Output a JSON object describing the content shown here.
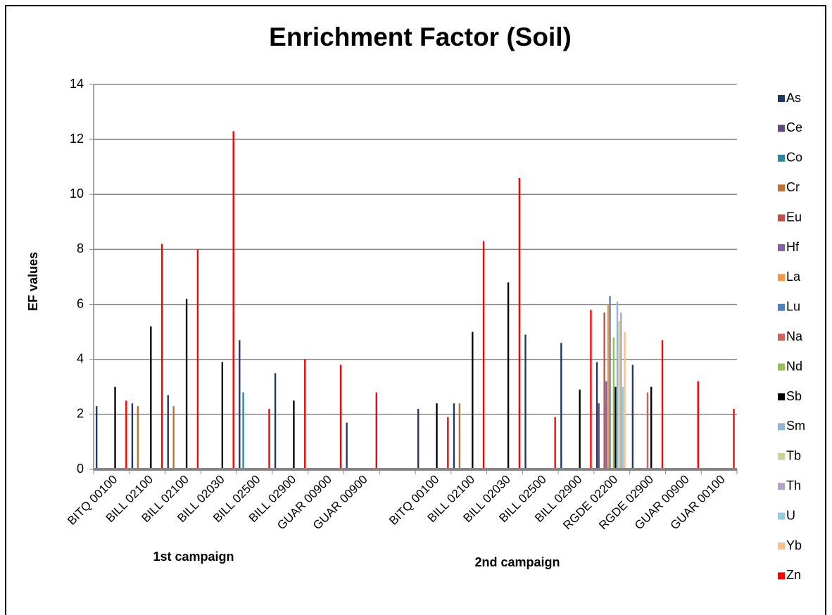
{
  "chart_data": {
    "type": "bar",
    "title": "Enrichment Factor (Soil)",
    "y_label": "EF values",
    "group_labels": [
      "1st campaign",
      "2nd campaign"
    ],
    "categories": [
      "BITQ 00100",
      "BILL 02100",
      "BILL 02100",
      "BILL 02030",
      "BILL 02500",
      "BILL 02900",
      "GUAR 00900",
      "GUAR 00900",
      null,
      "BITQ 00100",
      "BILL 02100",
      "BILL 02030",
      "BILL 02500",
      "BILL 02900",
      "RGDE 02200",
      "RGDE 02900",
      "GUAR 00900",
      "GUAR 00100"
    ],
    "ylim": [
      0,
      14
    ],
    "yticks": [
      0,
      2,
      4,
      6,
      8,
      10,
      12,
      14
    ],
    "grid": true,
    "legend": "right",
    "series": [
      {
        "name": "As",
        "color": "#1f3864",
        "values": [
          2.3,
          2.4,
          2.7,
          null,
          4.7,
          3.5,
          null,
          1.7,
          null,
          2.2,
          2.4,
          null,
          4.9,
          4.6,
          3.9,
          3.8,
          null,
          null
        ]
      },
      {
        "name": "Ce",
        "color": "#604a7b",
        "values": [
          null,
          null,
          null,
          null,
          null,
          null,
          null,
          null,
          null,
          null,
          null,
          null,
          null,
          null,
          2.4,
          null,
          null,
          null
        ]
      },
      {
        "name": "Co",
        "color": "#31859c",
        "values": [
          null,
          null,
          null,
          null,
          2.8,
          null,
          null,
          null,
          null,
          null,
          null,
          null,
          null,
          null,
          null,
          null,
          null,
          null
        ]
      },
      {
        "name": "Cr",
        "color": "#c0712f",
        "values": [
          null,
          2.3,
          2.3,
          null,
          null,
          null,
          null,
          null,
          null,
          null,
          2.4,
          null,
          null,
          null,
          null,
          null,
          null,
          null
        ]
      },
      {
        "name": "Eu",
        "color": "#c0504d",
        "values": [
          null,
          null,
          null,
          null,
          null,
          null,
          null,
          null,
          null,
          null,
          null,
          null,
          null,
          null,
          5.7,
          null,
          null,
          null
        ]
      },
      {
        "name": "Hf",
        "color": "#8064a2",
        "values": [
          null,
          null,
          null,
          null,
          null,
          null,
          null,
          null,
          null,
          null,
          null,
          null,
          null,
          null,
          3.2,
          null,
          null,
          null
        ]
      },
      {
        "name": "La",
        "color": "#f79646",
        "values": [
          null,
          null,
          null,
          null,
          null,
          null,
          null,
          null,
          null,
          null,
          null,
          null,
          null,
          null,
          6.0,
          null,
          null,
          null
        ]
      },
      {
        "name": "Lu",
        "color": "#4f81bd",
        "values": [
          null,
          null,
          null,
          null,
          null,
          null,
          null,
          null,
          null,
          null,
          null,
          null,
          null,
          null,
          6.3,
          null,
          null,
          null
        ]
      },
      {
        "name": "Na",
        "color": "#d0625e",
        "values": [
          null,
          null,
          null,
          null,
          null,
          null,
          null,
          null,
          null,
          null,
          null,
          null,
          null,
          null,
          null,
          2.8,
          null,
          null
        ]
      },
      {
        "name": "Nd",
        "color": "#9bbb59",
        "values": [
          null,
          null,
          null,
          null,
          null,
          null,
          null,
          null,
          null,
          null,
          null,
          null,
          null,
          null,
          4.8,
          null,
          null,
          null
        ]
      },
      {
        "name": "Sb",
        "color": "#000000",
        "values": [
          3.0,
          5.2,
          6.2,
          3.9,
          null,
          2.5,
          null,
          null,
          null,
          2.4,
          5.0,
          6.8,
          null,
          2.9,
          3.0,
          3.0,
          null,
          null
        ]
      },
      {
        "name": "Sm",
        "color": "#95b3d7",
        "values": [
          null,
          null,
          null,
          null,
          null,
          null,
          null,
          null,
          null,
          null,
          null,
          null,
          null,
          null,
          6.1,
          null,
          null,
          null
        ]
      },
      {
        "name": "Tb",
        "color": "#c3d69b",
        "values": [
          null,
          null,
          null,
          null,
          null,
          null,
          null,
          null,
          null,
          null,
          null,
          null,
          null,
          null,
          5.4,
          null,
          null,
          null
        ]
      },
      {
        "name": "Th",
        "color": "#b3a2c7",
        "values": [
          null,
          null,
          null,
          null,
          null,
          null,
          null,
          null,
          null,
          null,
          null,
          null,
          null,
          null,
          5.7,
          null,
          null,
          null
        ]
      },
      {
        "name": "U",
        "color": "#93cddd",
        "values": [
          null,
          null,
          null,
          null,
          null,
          null,
          null,
          null,
          null,
          null,
          null,
          null,
          null,
          null,
          3.0,
          null,
          null,
          null
        ]
      },
      {
        "name": "Yb",
        "color": "#fac090",
        "values": [
          null,
          null,
          null,
          null,
          null,
          null,
          null,
          null,
          null,
          null,
          null,
          null,
          null,
          null,
          5.0,
          null,
          null,
          null
        ]
      },
      {
        "name": "Zn",
        "color": "#ff0000",
        "values": [
          2.5,
          8.2,
          8.0,
          12.3,
          2.2,
          4.0,
          3.8,
          2.8,
          null,
          1.9,
          8.3,
          10.6,
          1.9,
          5.8,
          null,
          4.7,
          3.2,
          2.2
        ]
      }
    ]
  }
}
